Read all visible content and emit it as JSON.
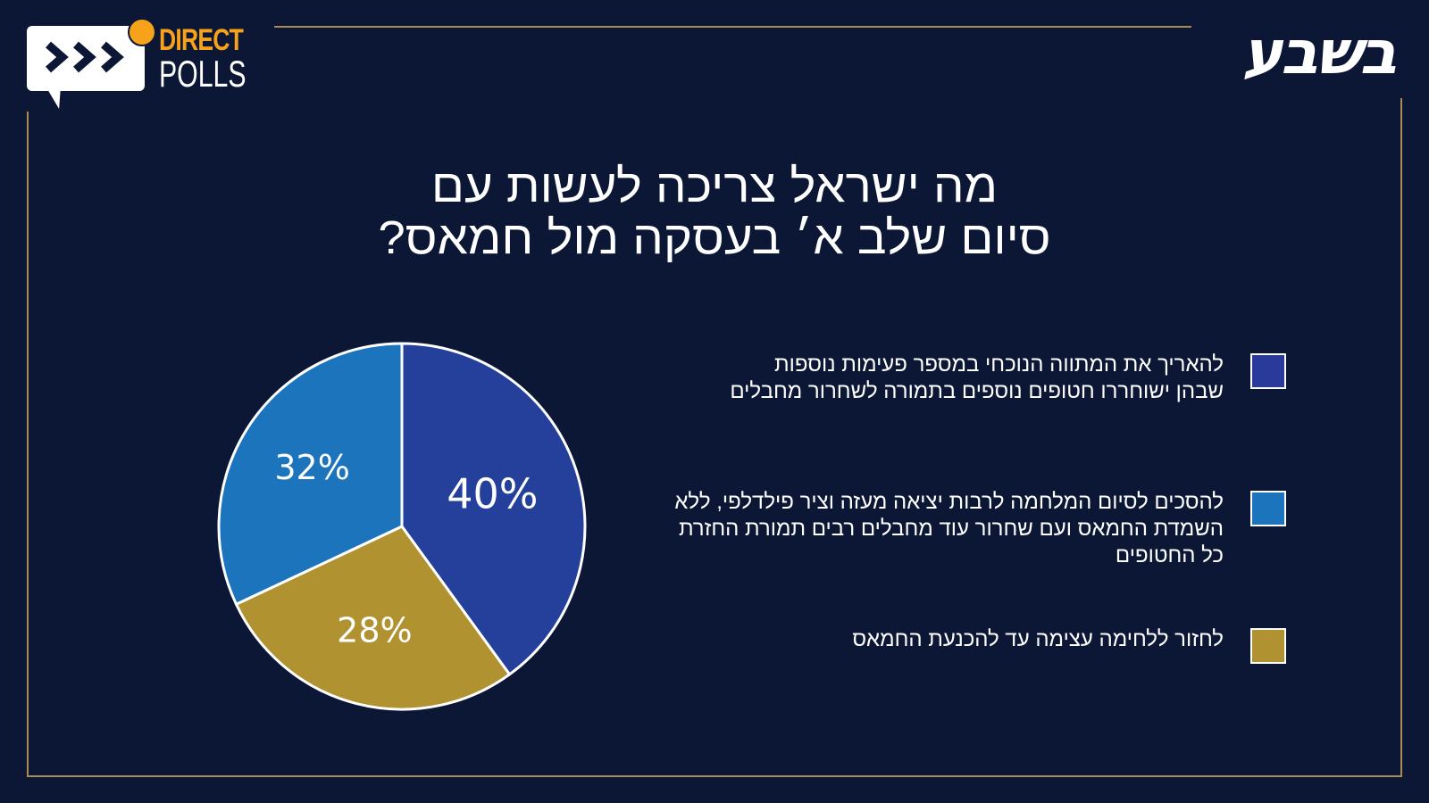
{
  "header": {
    "logo_left": {
      "line1": "DIRECT",
      "line2": "POLLS"
    },
    "logo_right": "בשבע"
  },
  "title": {
    "line1": "מה ישראל צריכה לעשות עם",
    "line2": "סיום שלב א׳ בעסקה מול חמאס?"
  },
  "colors": {
    "background": "#0c1736",
    "frame": "#a88a52",
    "accent_orange": "#f7a21b",
    "slice_1": "#24409b",
    "slice_2": "#1c74bc",
    "slice_3": "#b09231"
  },
  "legend": [
    {
      "label": "להאריך את המתווה הנוכחי במספר פעימות נוספות שבהן ישוחררו חטופים נוספים בתמורה לשחרור מחבלים",
      "color": "#2a3a9a"
    },
    {
      "label": "להסכים לסיום המלחמה לרבות יציאה מעזה וציר פילדלפי, ללא השמדת החמאס ועם שחרור עוד מחבלים רבים תמורת החזרת כל החטופים",
      "color": "#1c74bc"
    },
    {
      "label": "לחזור ללחימה עצימה עד להכנעת החמאס",
      "color": "#b09231"
    }
  ],
  "chart_data": {
    "type": "pie",
    "title": "מה ישראל צריכה לעשות עם סיום שלב א׳ בעסקה מול חמאס?",
    "categories": [
      "להאריך את המתווה הנוכחי במספר פעימות נוספות שבהן ישוחררו חטופים נוספים בתמורה לשחרור מחבלים",
      "לחזור ללחימה עצימה עד להכנעת החמאס",
      "להסכים לסיום המלחמה לרבות יציאה מעזה וציר פילדלפי, ללא השמדת החמאס ועם שחרור עוד מחבלים רבים תמורת החזרת כל החטופים"
    ],
    "values": [
      40,
      28,
      32
    ],
    "labels": [
      "40%",
      "28%",
      "32%"
    ],
    "colors": [
      "#24409b",
      "#b09231",
      "#1c74bc"
    ],
    "start_angle": "12 o'clock, clockwise",
    "legend_position": "right"
  }
}
